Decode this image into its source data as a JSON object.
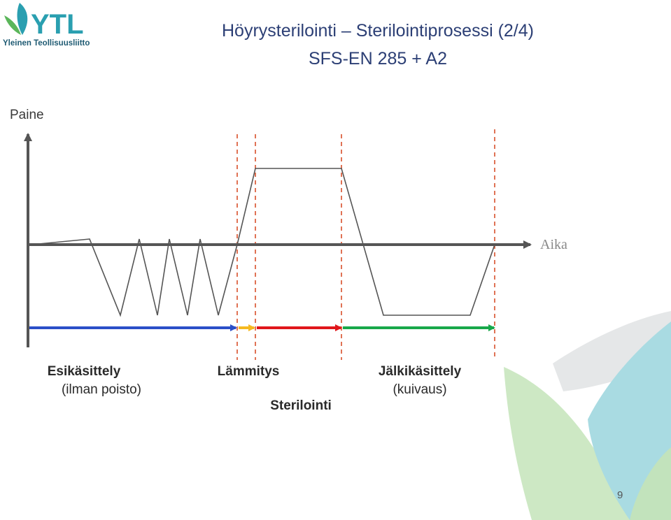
{
  "logo": {
    "word": "YTL",
    "subtext": "Yleinen Teollisuusliitto"
  },
  "title": "Höyrysterilointi – Sterilointiprosessi   (2/4)",
  "subtitle": "SFS-EN 285 + A2",
  "diagram": {
    "y_label": "Paine",
    "x_label": "Aika",
    "phases": {
      "pretreatment": "Esikäsittely",
      "pretreatment_note": "(ilman poisto)",
      "heating": "Lämmitys",
      "sterilization": "Sterilointi",
      "posttreatment": "Jälkikäsittely",
      "posttreatment_note": "(kuivaus)"
    },
    "colors": {
      "pretreatment": "#2b4fc8",
      "heating": "#f5b920",
      "sterilization": "#e0161b",
      "posttreatment": "#18a84a",
      "boundary": "#d9502b",
      "axis": "#555555"
    }
  },
  "page_number": "9"
}
